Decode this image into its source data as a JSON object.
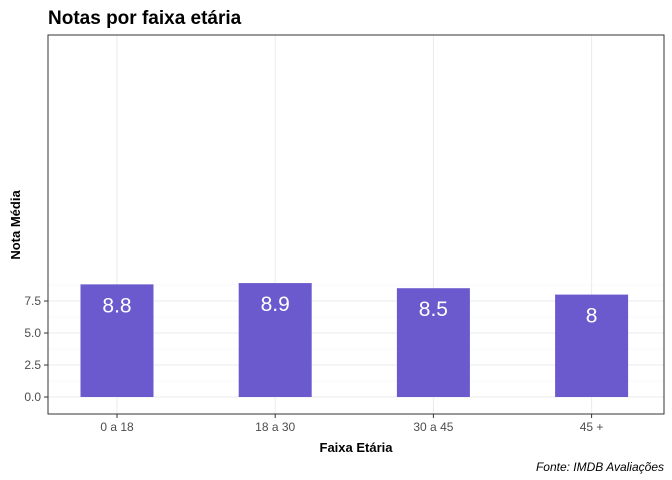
{
  "chart_data": {
    "type": "bar",
    "title": "Notas por faixa etária",
    "xlabel": "Faixa Etária",
    "ylabel": "Nota Média",
    "caption": "Fonte: IMDB Avaliações",
    "categories": [
      "0 a 18",
      "18 a 30",
      "30 a 45",
      "45 +"
    ],
    "values": [
      8.8,
      8.9,
      8.5,
      8.0
    ],
    "value_labels": [
      "8.8",
      "8.9",
      "8.5",
      "8"
    ],
    "yticks": [
      0.0,
      2.5,
      5.0,
      7.5
    ],
    "ytick_labels": [
      "0.0",
      "2.5",
      "5.0",
      "7.5"
    ],
    "ylim": [
      0,
      9.2
    ],
    "bar_color": "#6a5acd",
    "grid": true,
    "legend": "none"
  }
}
